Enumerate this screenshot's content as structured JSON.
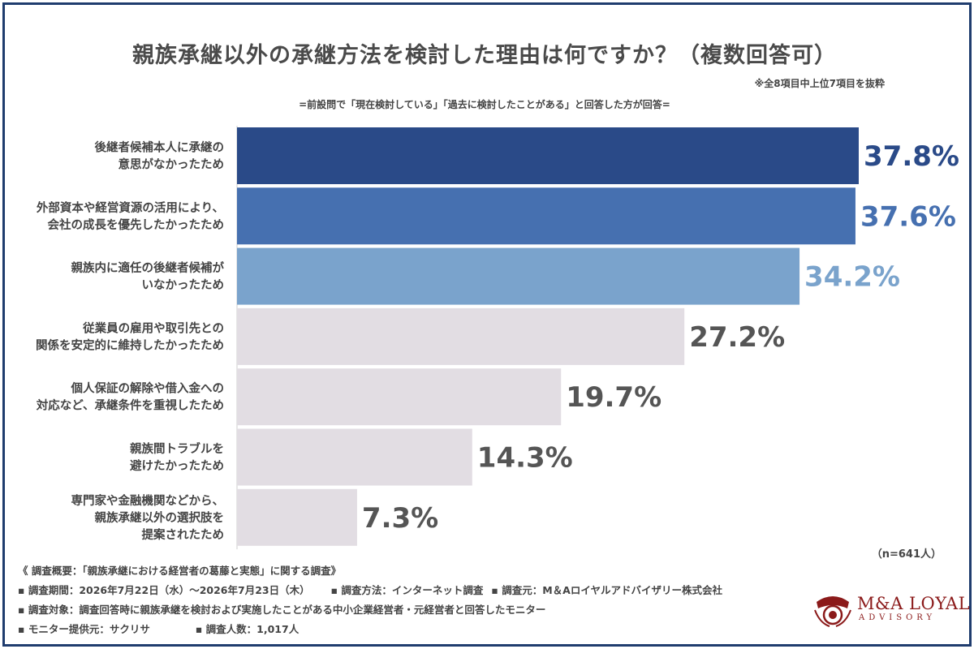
{
  "title": "親族承継以外の承継方法を検討した理由は何ですか？（複数回答可）",
  "note": "※全8項目中上位7項目を抜粋",
  "subtitle": "=前設問で「現在検討している」「過去に検討したことがある」と回答した方が回答=",
  "sample": "（n=641人）",
  "chart_data": {
    "type": "bar",
    "orientation": "horizontal",
    "categories": [
      [
        "後継者候補本人に承継の",
        "意思がなかったため"
      ],
      [
        "外部資本や経営資源の活用により、",
        "会社の成長を優先したかったため"
      ],
      [
        "親族内に適任の後継者候補が",
        "いなかったため"
      ],
      [
        "従業員の雇用や取引先との",
        "関係を安定的に維持したかったため"
      ],
      [
        "個人保証の解除や借入金への",
        "対応など、承継条件を重視したため"
      ],
      [
        "親族間トラブルを",
        "避けたかったため"
      ],
      [
        "専門家や金融機関などから、",
        "親族承継以外の選択肢を",
        "提案されたため"
      ]
    ],
    "values": [
      37.8,
      37.6,
      34.2,
      27.2,
      19.7,
      14.3,
      7.3
    ],
    "value_labels": [
      "37.8%",
      "37.6%",
      "34.2%",
      "27.2%",
      "19.7%",
      "14.3%",
      "7.3%"
    ],
    "bar_colors": [
      "#2a4a88",
      "#4670b0",
      "#7aa3cc",
      "#e2dde3",
      "#e2dde3",
      "#e2dde3",
      "#e2dde3"
    ],
    "label_colors": [
      "#2a4a88",
      "#4670b0",
      "#7aa3cc",
      "#555555",
      "#555555",
      "#555555",
      "#555555"
    ],
    "xlim": [
      0,
      37.8
    ],
    "grid": false,
    "legend": "none"
  },
  "summary": {
    "heading": "《 調査概要：「親族承継における経営者の葛藤と実態」に関する調査》",
    "period": "▪ 調査期間：2026年7月22日（水）〜2026年7月23日（木）",
    "method": "▪ 調査方法：インターネット調査",
    "organizer": "▪ 調査元：M＆Aロイヤルアドバイザリー株式会社",
    "target": "▪ 調査対象：調査回答時に親族承継を検討および実施したことがある中小企業経営者・元経営者と回答したモニター",
    "provider": "▪ モニター提供元：サクリサ",
    "count": "▪ 調査人数：1,017人"
  },
  "logo": {
    "name": "M&A LOYAL",
    "sub": "ADVISORY",
    "color": "#8b1a1a"
  }
}
